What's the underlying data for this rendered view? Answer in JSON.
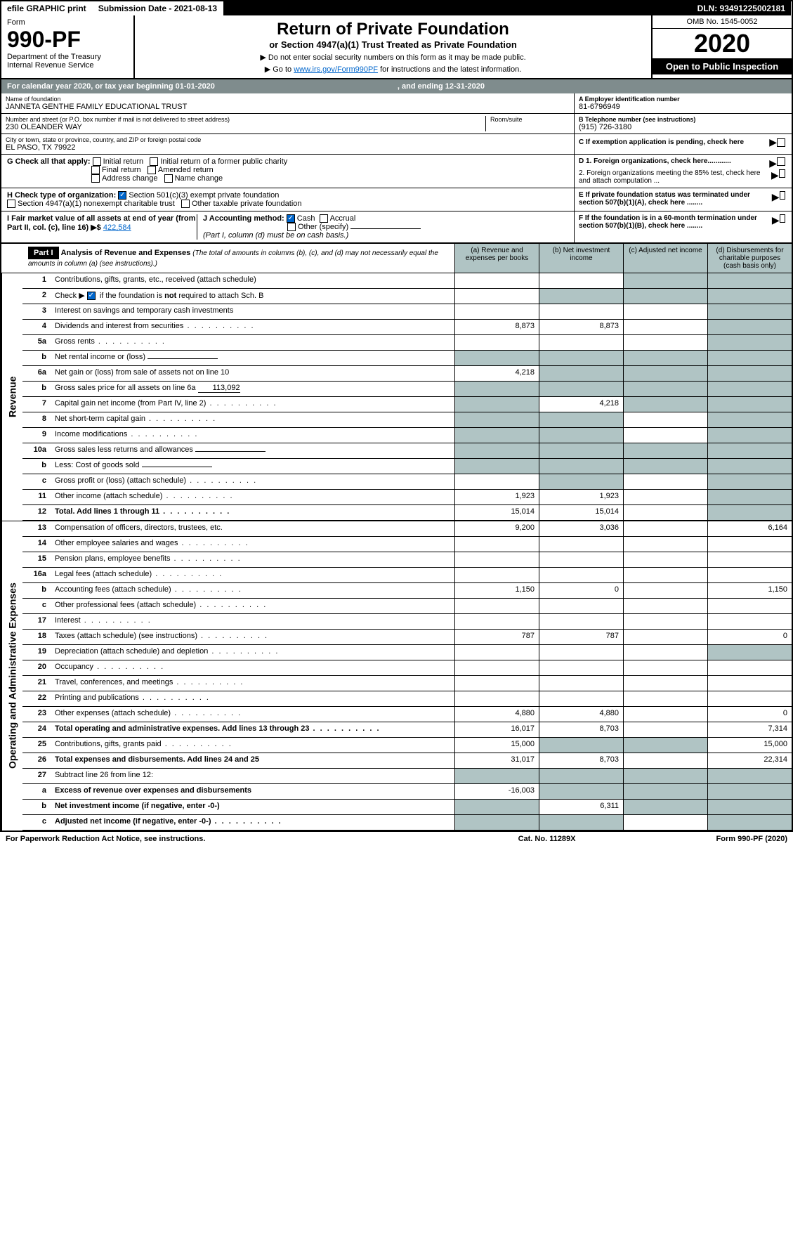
{
  "top": {
    "efile": "efile GRAPHIC print",
    "submission": "Submission Date - 2021-08-13",
    "dln": "DLN: 93491225002181"
  },
  "header": {
    "form_label": "Form",
    "form_number": "990-PF",
    "dept": "Department of the Treasury",
    "irs": "Internal Revenue Service",
    "title": "Return of Private Foundation",
    "subtitle": "or Section 4947(a)(1) Trust Treated as Private Foundation",
    "note1": "▶ Do not enter social security numbers on this form as it may be made public.",
    "note2_pre": "▶ Go to ",
    "note2_link": "www.irs.gov/Form990PF",
    "note2_post": " for instructions and the latest information.",
    "omb": "OMB No. 1545-0052",
    "year": "2020",
    "open": "Open to Public Inspection"
  },
  "cal": {
    "text1": "For calendar year 2020, or tax year beginning 01-01-2020",
    "text2": ", and ending 12-31-2020"
  },
  "org": {
    "name_label": "Name of foundation",
    "name": "JANNETA GENTHE FAMILY EDUCATIONAL TRUST",
    "addr_label": "Number and street (or P.O. box number if mail is not delivered to street address)",
    "addr": "230 OLEANDER WAY",
    "room_label": "Room/suite",
    "city_label": "City or town, state or province, country, and ZIP or foreign postal code",
    "city": "EL PASO, TX  79922",
    "ein_label": "A Employer identification number",
    "ein": "81-6796949",
    "phone_label": "B Telephone number (see instructions)",
    "phone": "(915) 726-3180",
    "c_label": "C If exemption application is pending, check here"
  },
  "checks": {
    "g_label": "G Check all that apply:",
    "g1": "Initial return",
    "g2": "Initial return of a former public charity",
    "g3": "Final return",
    "g4": "Amended return",
    "g5": "Address change",
    "g6": "Name change",
    "h_label": "H Check type of organization:",
    "h1": "Section 501(c)(3) exempt private foundation",
    "h2": "Section 4947(a)(1) nonexempt charitable trust",
    "h3": "Other taxable private foundation",
    "i_label": "I Fair market value of all assets at end of year (from Part II, col. (c), line 16) ▶$",
    "i_val": "422,584",
    "j_label": "J Accounting method:",
    "j1": "Cash",
    "j2": "Accrual",
    "j3": "Other (specify)",
    "j_note": "(Part I, column (d) must be on cash basis.)",
    "d1": "D 1. Foreign organizations, check here............",
    "d2": "2. Foreign organizations meeting the 85% test, check here and attach computation ...",
    "e": "E  If private foundation status was terminated under section 507(b)(1)(A), check here ........",
    "f": "F  If the foundation is in a 60-month termination under section 507(b)(1)(B), check here ........"
  },
  "part1": {
    "label": "Part I",
    "title": "Analysis of Revenue and Expenses",
    "note": "(The total of amounts in columns (b), (c), and (d) may not necessarily equal the amounts in column (a) (see instructions).)",
    "col_a": "(a)    Revenue and expenses per books",
    "col_b": "(b)  Net investment income",
    "col_c": "(c)  Adjusted net income",
    "col_d": "(d)  Disbursements for charitable purposes (cash basis only)"
  },
  "sides": {
    "revenue": "Revenue",
    "expenses": "Operating and Administrative Expenses"
  },
  "rows": [
    {
      "n": "1",
      "label": "Contributions, gifts, grants, etc., received (attach schedule)",
      "a": "",
      "b": "",
      "c": "",
      "d": "",
      "cg": true,
      "dg": true
    },
    {
      "n": "2",
      "label": "Check ▶ ✓ if the foundation is not required to attach Sch. B",
      "a": "",
      "b": "",
      "c": "",
      "d": "",
      "bg": true,
      "cg": true,
      "dg": true,
      "checkrow": true
    },
    {
      "n": "3",
      "label": "Interest on savings and temporary cash investments",
      "a": "",
      "b": "",
      "c": "",
      "d": "",
      "dg": true
    },
    {
      "n": "4",
      "label": "Dividends and interest from securities",
      "a": "8,873",
      "b": "8,873",
      "c": "",
      "d": "",
      "dg": true,
      "dots": true
    },
    {
      "n": "5a",
      "label": "Gross rents",
      "a": "",
      "b": "",
      "c": "",
      "d": "",
      "dg": true,
      "dots": true
    },
    {
      "n": "b",
      "label": "Net rental income or (loss)",
      "a": "",
      "b": "",
      "c": "",
      "d": "",
      "ag": true,
      "bg": true,
      "cg": true,
      "dg": true,
      "inline": true
    },
    {
      "n": "6a",
      "label": "Net gain or (loss) from sale of assets not on line 10",
      "a": "4,218",
      "b": "",
      "c": "",
      "d": "",
      "bg": true,
      "cg": true,
      "dg": true
    },
    {
      "n": "b",
      "label": "Gross sales price for all assets on line 6a",
      "inline_val": "113,092",
      "a": "",
      "b": "",
      "c": "",
      "d": "",
      "ag": true,
      "bg": true,
      "cg": true,
      "dg": true,
      "inline": true
    },
    {
      "n": "7",
      "label": "Capital gain net income (from Part IV, line 2)",
      "a": "",
      "b": "4,218",
      "c": "",
      "d": "",
      "ag": true,
      "cg": true,
      "dg": true,
      "dots": true
    },
    {
      "n": "8",
      "label": "Net short-term capital gain",
      "a": "",
      "b": "",
      "c": "",
      "d": "",
      "ag": true,
      "bg": true,
      "dg": true,
      "dots": true
    },
    {
      "n": "9",
      "label": "Income modifications",
      "a": "",
      "b": "",
      "c": "",
      "d": "",
      "ag": true,
      "bg": true,
      "dg": true,
      "dots": true
    },
    {
      "n": "10a",
      "label": "Gross sales less returns and allowances",
      "a": "",
      "b": "",
      "c": "",
      "d": "",
      "ag": true,
      "bg": true,
      "cg": true,
      "dg": true,
      "inline": true
    },
    {
      "n": "b",
      "label": "Less: Cost of goods sold",
      "a": "",
      "b": "",
      "c": "",
      "d": "",
      "ag": true,
      "bg": true,
      "cg": true,
      "dg": true,
      "inline": true,
      "dots": true
    },
    {
      "n": "c",
      "label": "Gross profit or (loss) (attach schedule)",
      "a": "",
      "b": "",
      "c": "",
      "d": "",
      "bg": true,
      "dg": true,
      "dots": true
    },
    {
      "n": "11",
      "label": "Other income (attach schedule)",
      "a": "1,923",
      "b": "1,923",
      "c": "",
      "d": "",
      "dg": true,
      "dots": true
    },
    {
      "n": "12",
      "label": "Total. Add lines 1 through 11",
      "a": "15,014",
      "b": "15,014",
      "c": "",
      "d": "",
      "dg": true,
      "bold": true,
      "dots": true
    }
  ],
  "exp_rows": [
    {
      "n": "13",
      "label": "Compensation of officers, directors, trustees, etc.",
      "a": "9,200",
      "b": "3,036",
      "c": "",
      "d": "6,164"
    },
    {
      "n": "14",
      "label": "Other employee salaries and wages",
      "a": "",
      "b": "",
      "c": "",
      "d": "",
      "dots": true
    },
    {
      "n": "15",
      "label": "Pension plans, employee benefits",
      "a": "",
      "b": "",
      "c": "",
      "d": "",
      "dots": true
    },
    {
      "n": "16a",
      "label": "Legal fees (attach schedule)",
      "a": "",
      "b": "",
      "c": "",
      "d": "",
      "dots": true
    },
    {
      "n": "b",
      "label": "Accounting fees (attach schedule)",
      "a": "1,150",
      "b": "0",
      "c": "",
      "d": "1,150",
      "dots": true
    },
    {
      "n": "c",
      "label": "Other professional fees (attach schedule)",
      "a": "",
      "b": "",
      "c": "",
      "d": "",
      "dots": true
    },
    {
      "n": "17",
      "label": "Interest",
      "a": "",
      "b": "",
      "c": "",
      "d": "",
      "dots": true
    },
    {
      "n": "18",
      "label": "Taxes (attach schedule) (see instructions)",
      "a": "787",
      "b": "787",
      "c": "",
      "d": "0",
      "dots": true
    },
    {
      "n": "19",
      "label": "Depreciation (attach schedule) and depletion",
      "a": "",
      "b": "",
      "c": "",
      "d": "",
      "dg": true,
      "dots": true
    },
    {
      "n": "20",
      "label": "Occupancy",
      "a": "",
      "b": "",
      "c": "",
      "d": "",
      "dots": true
    },
    {
      "n": "21",
      "label": "Travel, conferences, and meetings",
      "a": "",
      "b": "",
      "c": "",
      "d": "",
      "dots": true
    },
    {
      "n": "22",
      "label": "Printing and publications",
      "a": "",
      "b": "",
      "c": "",
      "d": "",
      "dots": true
    },
    {
      "n": "23",
      "label": "Other expenses (attach schedule)",
      "a": "4,880",
      "b": "4,880",
      "c": "",
      "d": "0",
      "dots": true
    },
    {
      "n": "24",
      "label": "Total operating and administrative expenses. Add lines 13 through 23",
      "a": "16,017",
      "b": "8,703",
      "c": "",
      "d": "7,314",
      "bold": true,
      "dots": true
    },
    {
      "n": "25",
      "label": "Contributions, gifts, grants paid",
      "a": "15,000",
      "b": "",
      "c": "",
      "d": "15,000",
      "bg": true,
      "cg": true,
      "dots": true
    },
    {
      "n": "26",
      "label": "Total expenses and disbursements. Add lines 24 and 25",
      "a": "31,017",
      "b": "8,703",
      "c": "",
      "d": "22,314",
      "bold": true
    },
    {
      "n": "27",
      "label": "Subtract line 26 from line 12:",
      "a": "",
      "b": "",
      "c": "",
      "d": "",
      "ag": true,
      "bg": true,
      "cg": true,
      "dg": true
    },
    {
      "n": "a",
      "label": "Excess of revenue over expenses and disbursements",
      "a": "-16,003",
      "b": "",
      "c": "",
      "d": "",
      "bg": true,
      "cg": true,
      "dg": true,
      "bold": true
    },
    {
      "n": "b",
      "label": "Net investment income (if negative, enter -0-)",
      "a": "",
      "b": "6,311",
      "c": "",
      "d": "",
      "ag": true,
      "cg": true,
      "dg": true,
      "bold": true
    },
    {
      "n": "c",
      "label": "Adjusted net income (if negative, enter -0-)",
      "a": "",
      "b": "",
      "c": "",
      "d": "",
      "ag": true,
      "bg": true,
      "dg": true,
      "bold": true,
      "dots": true
    }
  ],
  "footer": {
    "left": "For Paperwork Reduction Act Notice, see instructions.",
    "mid": "Cat. No. 11289X",
    "right": "Form 990-PF (2020)"
  }
}
